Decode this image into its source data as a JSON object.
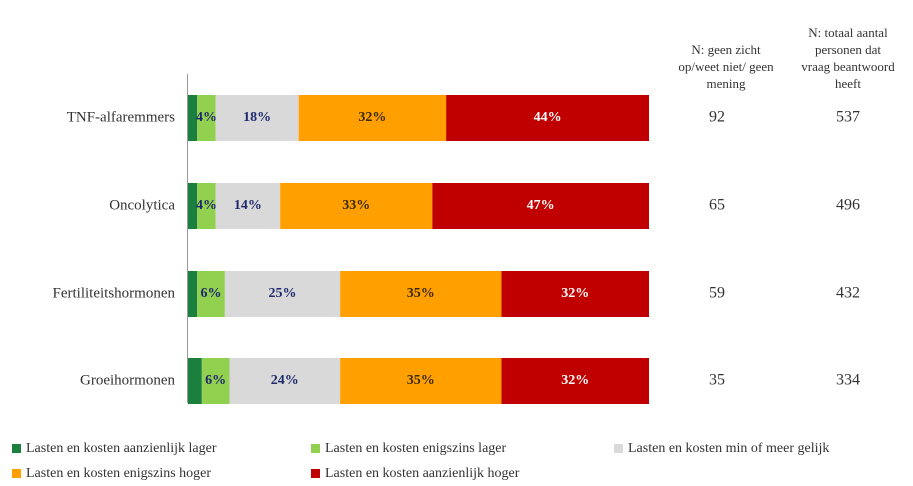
{
  "chart_data": {
    "type": "stacked_bar_horizontal",
    "categories": [
      "TNF-alfaremmers",
      "Oncolytica",
      "Fertiliteitshormonen",
      "Groeihormonen"
    ],
    "xlim": [
      0,
      100
    ],
    "series": [
      {
        "name": "Lasten en kosten aanzienlijk lager",
        "color": "#1b7f3e",
        "values": [
          2,
          2,
          2,
          3
        ]
      },
      {
        "name": "Lasten en kosten enigszins lager",
        "color": "#92d050",
        "label_color": "#1f2a6e",
        "values": [
          4,
          4,
          6,
          6
        ],
        "value_labels": [
          "4%",
          "4%",
          "6%",
          "6%"
        ]
      },
      {
        "name": "Lasten en kosten min of meer gelijk",
        "color": "#d9d9d9",
        "label_color": "#1f2a6e",
        "values": [
          18,
          14,
          25,
          24
        ],
        "value_labels": [
          "18%",
          "14%",
          "25%",
          "24%"
        ]
      },
      {
        "name": "Lasten en kosten enigszins hoger",
        "color": "#ffa000",
        "label_color": "#3a2a10",
        "values": [
          32,
          33,
          35,
          35
        ],
        "value_labels": [
          "32%",
          "33%",
          "35%",
          "35%"
        ]
      },
      {
        "name": "Lasten en kosten aanzienlijk hoger",
        "color": "#c00000",
        "label_color": "#ffffff",
        "values": [
          44,
          47,
          32,
          32
        ],
        "value_labels": [
          "44%",
          "47%",
          "32%",
          "32%"
        ]
      }
    ],
    "n_columns": [
      {
        "header": "N: geen zicht op/weet niet/ geen mening",
        "values": [
          92,
          65,
          59,
          35
        ]
      },
      {
        "header": "N: totaal aantal personen dat vraag beantwoord heeft",
        "values": [
          537,
          496,
          432,
          334
        ]
      }
    ]
  }
}
